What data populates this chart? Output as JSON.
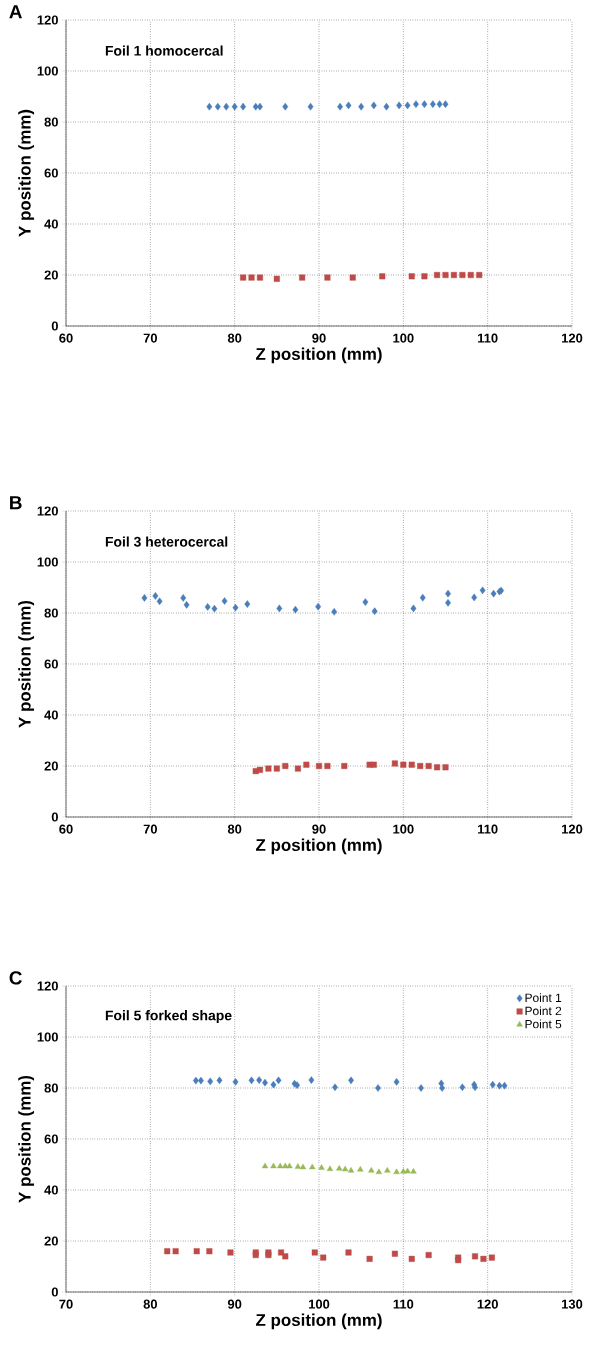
{
  "chart_data": [
    {
      "type": "scatter",
      "title": "Foil 1 homocercal",
      "annotations": [
        "A"
      ],
      "xlabel": "Z position (mm)",
      "ylabel": "Y position (mm)",
      "xlim": [
        60,
        120
      ],
      "xticks": [
        60,
        70,
        80,
        90,
        100,
        110,
        120
      ],
      "ylim": [
        0,
        120
      ],
      "yticks": [
        0,
        20,
        40,
        60,
        80,
        100,
        120
      ],
      "grid": true,
      "legend": false,
      "series": [
        {
          "color": "#4a7ebb",
          "marker": "diamond",
          "x": [
            77,
            78,
            79,
            80,
            81,
            82.5,
            83,
            86,
            89,
            92.5,
            93.5,
            95,
            96.5,
            98,
            99.5,
            100.5,
            101.5,
            102.5,
            103.5,
            104.3,
            105
          ],
          "values": [
            86,
            86,
            86,
            86,
            86,
            86,
            86,
            86,
            86,
            86,
            86.5,
            86,
            86.5,
            86,
            86.5,
            86.5,
            87,
            87,
            87,
            87,
            87
          ]
        },
        {
          "color": "#be4b48",
          "marker": "square",
          "x": [
            81,
            82,
            83,
            85,
            88,
            91,
            94,
            97.5,
            101,
            102.5,
            104,
            105,
            106,
            107,
            108,
            109
          ],
          "values": [
            19,
            19,
            19,
            18.5,
            19,
            19,
            19,
            19.5,
            19.5,
            19.5,
            20,
            20,
            20,
            20,
            20,
            20
          ]
        }
      ]
    },
    {
      "type": "scatter",
      "title": "Foil 3 heterocercal",
      "annotations": [
        "B"
      ],
      "xlabel": "Z position (mm)",
      "ylabel": "Y position (mm)",
      "xlim": [
        60,
        120
      ],
      "xticks": [
        60,
        70,
        80,
        90,
        100,
        110,
        120
      ],
      "ylim": [
        0,
        120
      ],
      "yticks": [
        0,
        20,
        40,
        60,
        80,
        100,
        120
      ],
      "grid": true,
      "legend": false,
      "series": [
        {
          "color": "#4a7ebb",
          "marker": "diamond",
          "x": [
            69.3,
            70.6,
            71.1,
            73.9,
            74.3,
            76.8,
            77.6,
            78.8,
            80.1,
            81.5,
            85.3,
            87.2,
            89.9,
            91.8,
            95.5,
            96.6,
            101.2,
            102.3,
            105.3,
            105.3,
            108.4,
            109.4,
            110.7,
            111.4,
            111.6
          ],
          "values": [
            85.9,
            86.7,
            84.6,
            85.9,
            83.2,
            82.4,
            81.7,
            84.7,
            82.1,
            83.5,
            81.8,
            81.3,
            82.5,
            80.5,
            84.3,
            80.7,
            81.8,
            86,
            87.6,
            84,
            86.1,
            88.9,
            87.6,
            88.4,
            88.8
          ]
        },
        {
          "color": "#be4b48",
          "marker": "square",
          "x": [
            82.5,
            83,
            84,
            85,
            86,
            87.5,
            88.5,
            90,
            91,
            93,
            96,
            96.5,
            99,
            100,
            101,
            102,
            103,
            104,
            105
          ],
          "values": [
            18,
            18.5,
            19,
            19,
            20,
            19,
            20.5,
            20,
            20,
            20,
            20.5,
            20.5,
            21,
            20.5,
            20.5,
            20,
            20,
            19.5,
            19.5
          ]
        }
      ]
    },
    {
      "type": "scatter",
      "title": "Foil 5 forked shape",
      "annotations": [
        "C"
      ],
      "xlabel": "Z position (mm)",
      "ylabel": "Y position (mm)",
      "xlim": [
        70,
        130
      ],
      "xticks": [
        70,
        80,
        90,
        100,
        110,
        120,
        130
      ],
      "ylim": [
        0,
        120
      ],
      "yticks": [
        0,
        20,
        40,
        60,
        80,
        100,
        120
      ],
      "grid": true,
      "legend": "top right",
      "series": [
        {
          "name": "Point 1",
          "color": "#4a7ebb",
          "marker": "diamond",
          "x": [
            85.4,
            86,
            87.1,
            88.2,
            90.1,
            92,
            92.9,
            93.6,
            94.6,
            95.2,
            97.1,
            97.4,
            99.1,
            101.9,
            103.8,
            107,
            109.2,
            112.1,
            114.5,
            114.6,
            117,
            118.4,
            118.5,
            120.6,
            121.4,
            122
          ],
          "values": [
            82.9,
            82.9,
            82.6,
            83,
            82.4,
            83,
            83.1,
            82.1,
            81.3,
            83,
            81.7,
            81.1,
            83.1,
            80.3,
            83,
            80,
            82.4,
            80,
            81.8,
            80,
            80.3,
            81.3,
            80.3,
            81.3,
            80.9,
            80.9
          ]
        },
        {
          "name": "Point 2",
          "color": "#be4b48",
          "marker": "square",
          "x": [
            82,
            83,
            85.5,
            87,
            89.5,
            92.5,
            92.5,
            94,
            94,
            95.5,
            96,
            99.5,
            100.5,
            103.5,
            106,
            109,
            111,
            113,
            116.5,
            116.5,
            118.5,
            119.5,
            120.5
          ],
          "values": [
            16,
            16,
            16,
            16,
            15.5,
            15.5,
            14.5,
            15.5,
            14.5,
            15.5,
            14,
            15.5,
            13.5,
            15.5,
            13,
            15,
            13,
            14.5,
            13.5,
            12.5,
            14,
            13,
            13.5
          ]
        },
        {
          "name": "Point 5",
          "color": "#98b954",
          "marker": "triangle",
          "x": [
            93.6,
            94.6,
            95.4,
            96,
            96.5,
            97.5,
            98.1,
            99.2,
            100.3,
            101.3,
            102.4,
            103.1,
            103.8,
            104.9,
            106.2,
            107.1,
            108.1,
            109.2,
            110,
            110.5,
            111.2
          ],
          "values": [
            49.3,
            49.3,
            49.3,
            49.3,
            49.3,
            49.1,
            48.9,
            48.9,
            48.7,
            48.2,
            48.4,
            48.1,
            47.6,
            48,
            47.6,
            47,
            47.6,
            47,
            47.2,
            47.3,
            47.2
          ]
        }
      ]
    }
  ]
}
